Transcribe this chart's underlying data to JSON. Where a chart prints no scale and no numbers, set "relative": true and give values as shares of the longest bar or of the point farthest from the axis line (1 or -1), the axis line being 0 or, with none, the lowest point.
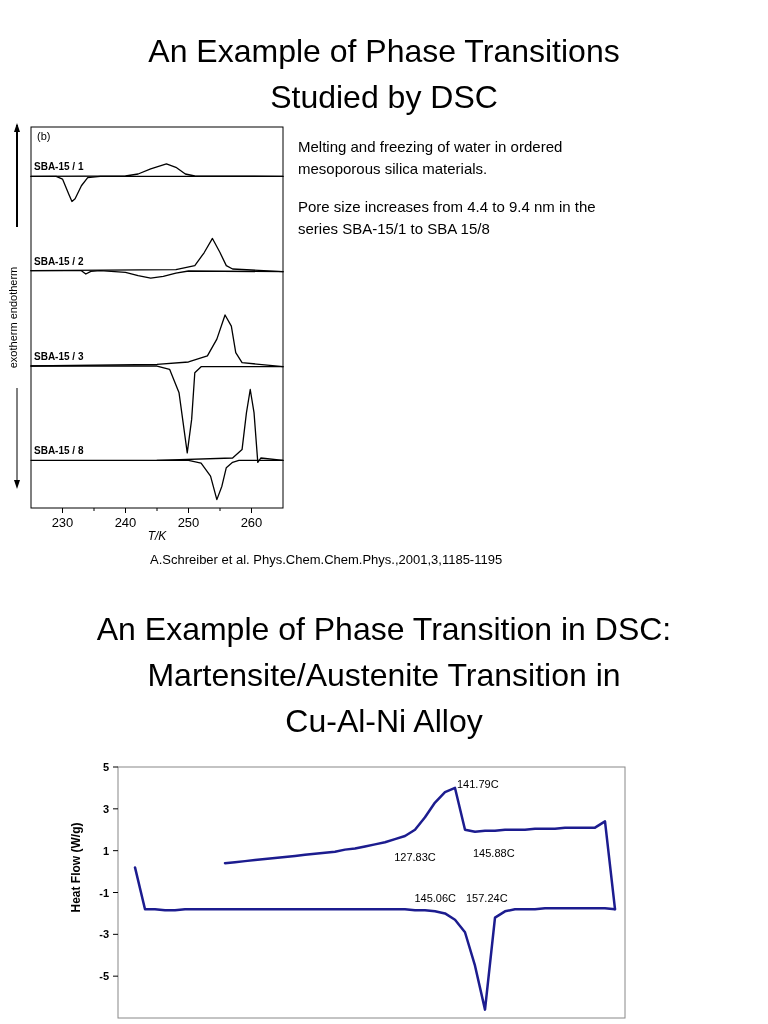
{
  "chart_data": [
    {
      "type": "line",
      "title": "An Example of Phase Transitions Studied by DSC",
      "xlabel": "T/K",
      "ylabel": "exotherm endotherm",
      "relative": true,
      "xlim": [
        225,
        265
      ],
      "xticks": [
        230,
        {
          "value": 235,
          "label": null
        },
        240,
        {
          "value": 245,
          "label": null
        },
        250,
        {
          "value": 255,
          "label": null
        },
        260
      ],
      "annotations": [
        "(b)",
        "Melting and freezing of water in ordered mesoporous silica materials.",
        "Pore size increases from 4.4 to 9.4 nm in the series SBA-15/1 to SBA 15/8",
        "A.Schreiber et al. Phys.Chem.Chem.Phys.,2001,3,1185-1195"
      ],
      "series": [
        {
          "name": "SBA-15 / 1",
          "color": "#000000",
          "x": [
            225,
            229,
            230,
            231,
            231.5,
            232,
            233,
            234,
            236,
            265
          ],
          "values": [
            0.963,
            0.963,
            0.955,
            0.91,
            0.888,
            0.896,
            0.935,
            0.959,
            0.963,
            0.963
          ]
        },
        {
          "color": "#000000",
          "x": [
            225,
            240,
            242,
            244,
            246.5,
            248,
            249.5,
            251,
            265
          ],
          "values": [
            0.963,
            0.964,
            0.97,
            0.985,
            1.0,
            0.99,
            0.97,
            0.964,
            0.963
          ]
        },
        {
          "name": "SBA-15 / 2",
          "color": "#000000",
          "x": [
            225,
            233,
            233.7,
            234.5,
            236,
            240,
            242,
            244,
            246,
            248,
            250,
            265
          ],
          "values": [
            0.682,
            0.682,
            0.672,
            0.68,
            0.682,
            0.677,
            0.667,
            0.66,
            0.665,
            0.675,
            0.681,
            0.679
          ]
        },
        {
          "color": "#000000",
          "x": [
            225,
            248,
            251,
            252.5,
            253.8,
            255,
            256,
            257,
            265
          ],
          "values": [
            0.682,
            0.685,
            0.697,
            0.736,
            0.778,
            0.736,
            0.697,
            0.687,
            0.679
          ]
        },
        {
          "name": "SBA-15 / 3",
          "color": "#000000",
          "x": [
            225,
            245,
            247,
            248.5,
            249.8,
            250.5,
            251,
            252,
            265
          ],
          "values": [
            0.398,
            0.398,
            0.388,
            0.318,
            0.139,
            0.239,
            0.378,
            0.396,
            0.396
          ]
        },
        {
          "color": "#000000",
          "x": [
            225,
            245,
            250,
            253,
            254.5,
            255.8,
            256.8,
            257.5,
            258.5,
            265
          ],
          "values": [
            0.398,
            0.403,
            0.41,
            0.428,
            0.478,
            0.55,
            0.517,
            0.438,
            0.408,
            0.396
          ]
        },
        {
          "name": "SBA-15 / 8",
          "color": "#000000",
          "x": [
            225,
            250,
            252,
            253.5,
            254.5,
            255.3,
            256,
            257,
            258,
            265
          ],
          "values": [
            0.117,
            0.117,
            0.109,
            0.07,
            0,
            0.04,
            0.095,
            0.111,
            0.117,
            0.117
          ]
        },
        {
          "color": "#000000",
          "x": [
            245,
            257,
            258.5,
            259.2,
            259.8,
            260.4,
            261,
            261.5,
            265
          ],
          "values": [
            0.117,
            0.124,
            0.149,
            0.259,
            0.328,
            0.259,
            0.111,
            0.124,
            0.117
          ]
        }
      ]
    },
    {
      "type": "line",
      "title": "An Example of Phase Transition in DSC: Martensite/Austenite Transition in Cu-Al-Ni Alloy",
      "ylabel": "Heat Flow (W/g)",
      "ylim": [
        -7,
        5
      ],
      "yticks": [
        -5,
        -3,
        -1,
        1,
        3,
        5
      ],
      "tick_labels": "y",
      "categories": [
        null,
        null,
        null,
        null,
        null,
        null,
        null,
        null,
        null,
        null,
        null,
        null,
        null,
        null,
        null,
        null,
        null,
        null,
        null,
        null,
        null,
        null,
        null,
        null,
        null,
        null,
        null,
        null,
        null,
        null,
        null,
        null,
        null,
        null,
        null,
        null,
        null,
        null,
        null,
        null,
        null,
        null,
        null,
        null,
        null,
        null,
        null,
        null,
        null
      ],
      "annotations": [
        "141.79C",
        "127.83C",
        "145.88C",
        "145.06C",
        "157.24C"
      ],
      "series": [
        {
          "color": "#1c1c8f",
          "values": [
            0.2,
            -1.8,
            -1.8,
            -1.85,
            -1.85,
            -1.8,
            -1.8,
            -1.8,
            -1.8,
            -1.8,
            -1.8,
            -1.8,
            -1.8,
            -1.8,
            -1.8,
            -1.8,
            -1.8,
            -1.8,
            -1.8,
            -1.8,
            -1.8,
            -1.8,
            -1.8,
            -1.8,
            -1.8,
            -1.8,
            -1.8,
            -1.8,
            -1.85,
            -1.85,
            -1.9,
            -2.0,
            -2.3,
            -2.9,
            -4.5,
            -6.6,
            -2.2,
            -1.9,
            -1.8,
            -1.8,
            -1.8,
            -1.75,
            -1.75,
            -1.75,
            -1.75,
            -1.75,
            -1.75,
            -1.75,
            -1.8
          ]
        },
        {
          "color": "#1c1c8f",
          "values": [
            null,
            null,
            null,
            null,
            null,
            null,
            null,
            null,
            null,
            0.4,
            0.45,
            0.5,
            0.55,
            0.6,
            0.65,
            0.7,
            0.75,
            0.8,
            0.85,
            0.9,
            0.95,
            1.05,
            1.1,
            1.2,
            1.3,
            1.4,
            1.55,
            1.7,
            2.0,
            2.6,
            3.3,
            3.8,
            4.0,
            2.0,
            1.9,
            1.95,
            1.95,
            2.0,
            2.0,
            2.0,
            2.05,
            2.05,
            2.05,
            2.1,
            2.1,
            2.1,
            2.1,
            2.4,
            -1.8
          ]
        }
      ]
    }
  ]
}
